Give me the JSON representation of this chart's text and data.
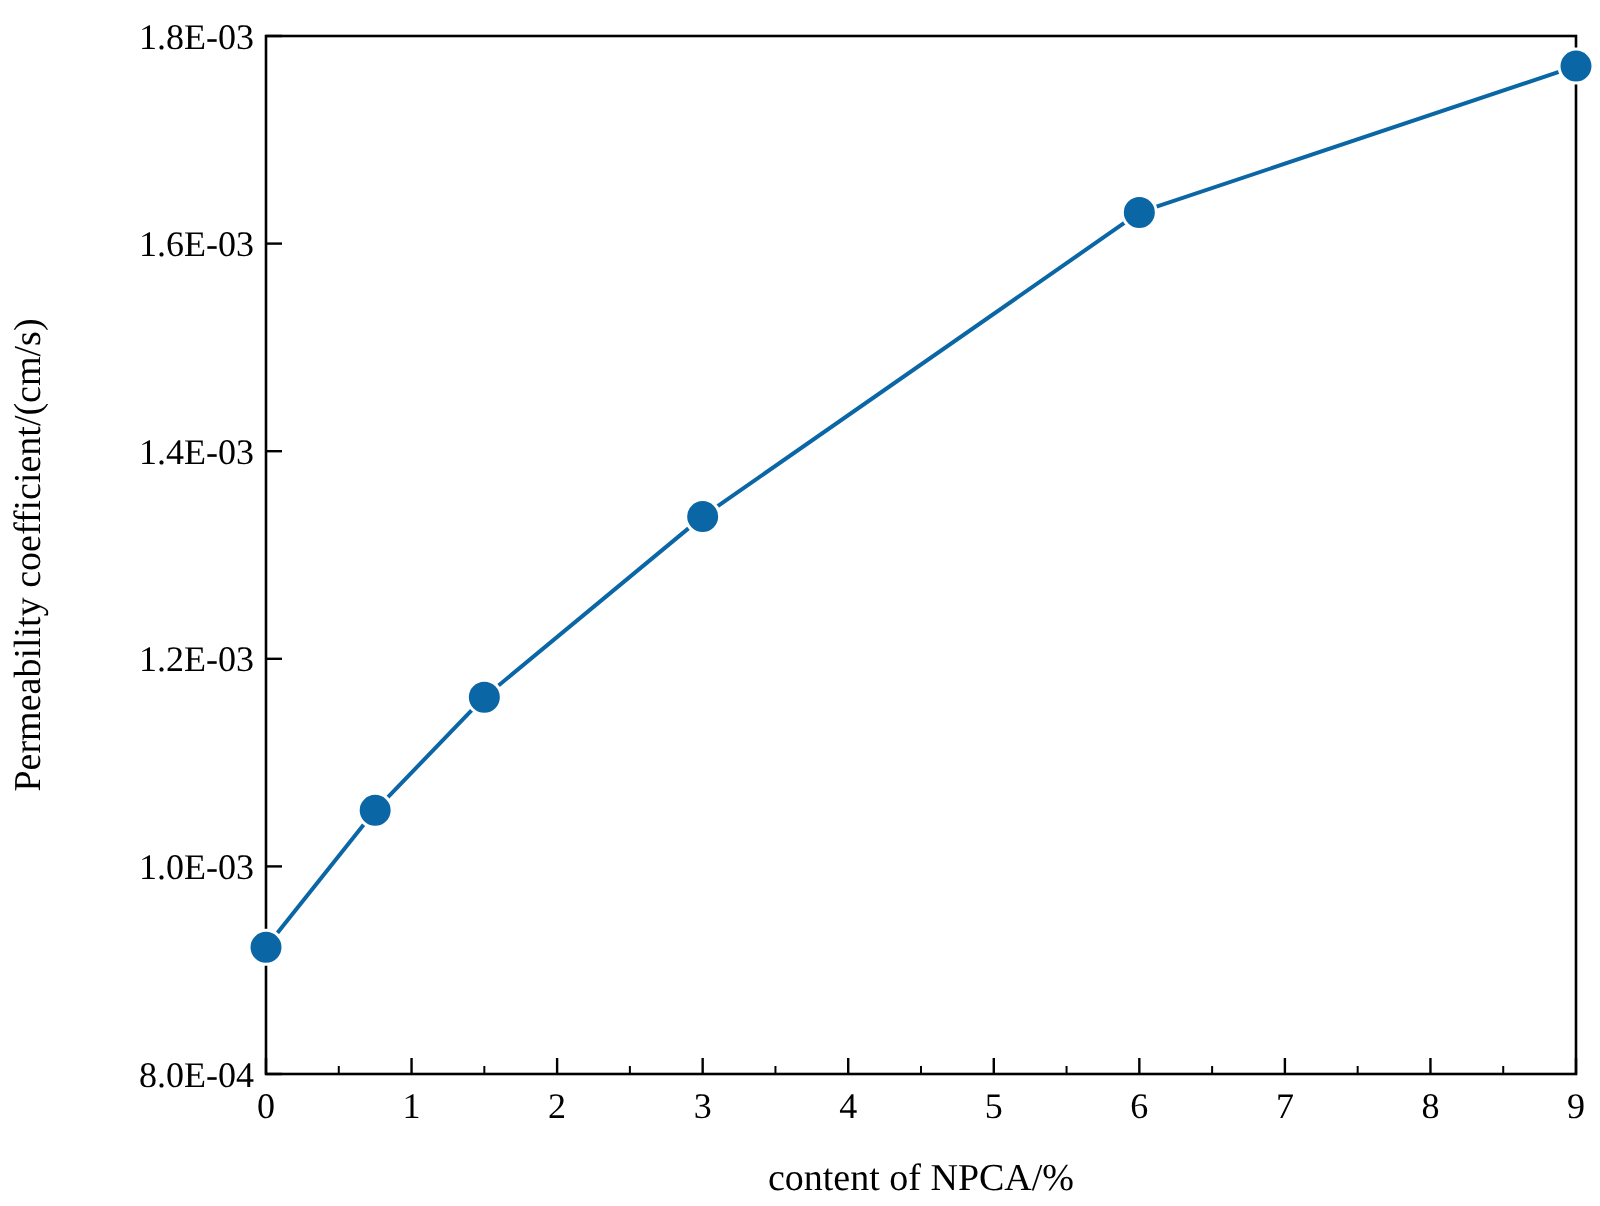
{
  "chart_data": {
    "type": "line",
    "xlabel": "content of NPCA/%",
    "ylabel": "Permeability coefficient/(cm/s)",
    "x": [
      0,
      0.75,
      1.5,
      3,
      6,
      9
    ],
    "series": [
      {
        "color": "#0b66a6",
        "values": [
          0.000922,
          0.001054,
          0.001163,
          0.001337,
          0.00163,
          0.001771
        ]
      }
    ],
    "xlim": [
      0,
      9
    ],
    "xticks": [
      0,
      1,
      2,
      3,
      4,
      5,
      6,
      7,
      8,
      9
    ],
    "ylim": [
      0.0008,
      0.0018
    ],
    "yticks": [
      {
        "value": 0.0008,
        "label": "8.0E-04"
      },
      {
        "value": 0.001,
        "label": "1.0E-03"
      },
      {
        "value": 0.0012,
        "label": "1.2E-03"
      },
      {
        "value": 0.0014,
        "label": "1.4E-03"
      },
      {
        "value": 0.0016,
        "label": "1.6E-03"
      },
      {
        "value": 0.0018,
        "label": "1.8E-03"
      }
    ],
    "marker": "circle",
    "line_style": "solid",
    "grid": false
  }
}
